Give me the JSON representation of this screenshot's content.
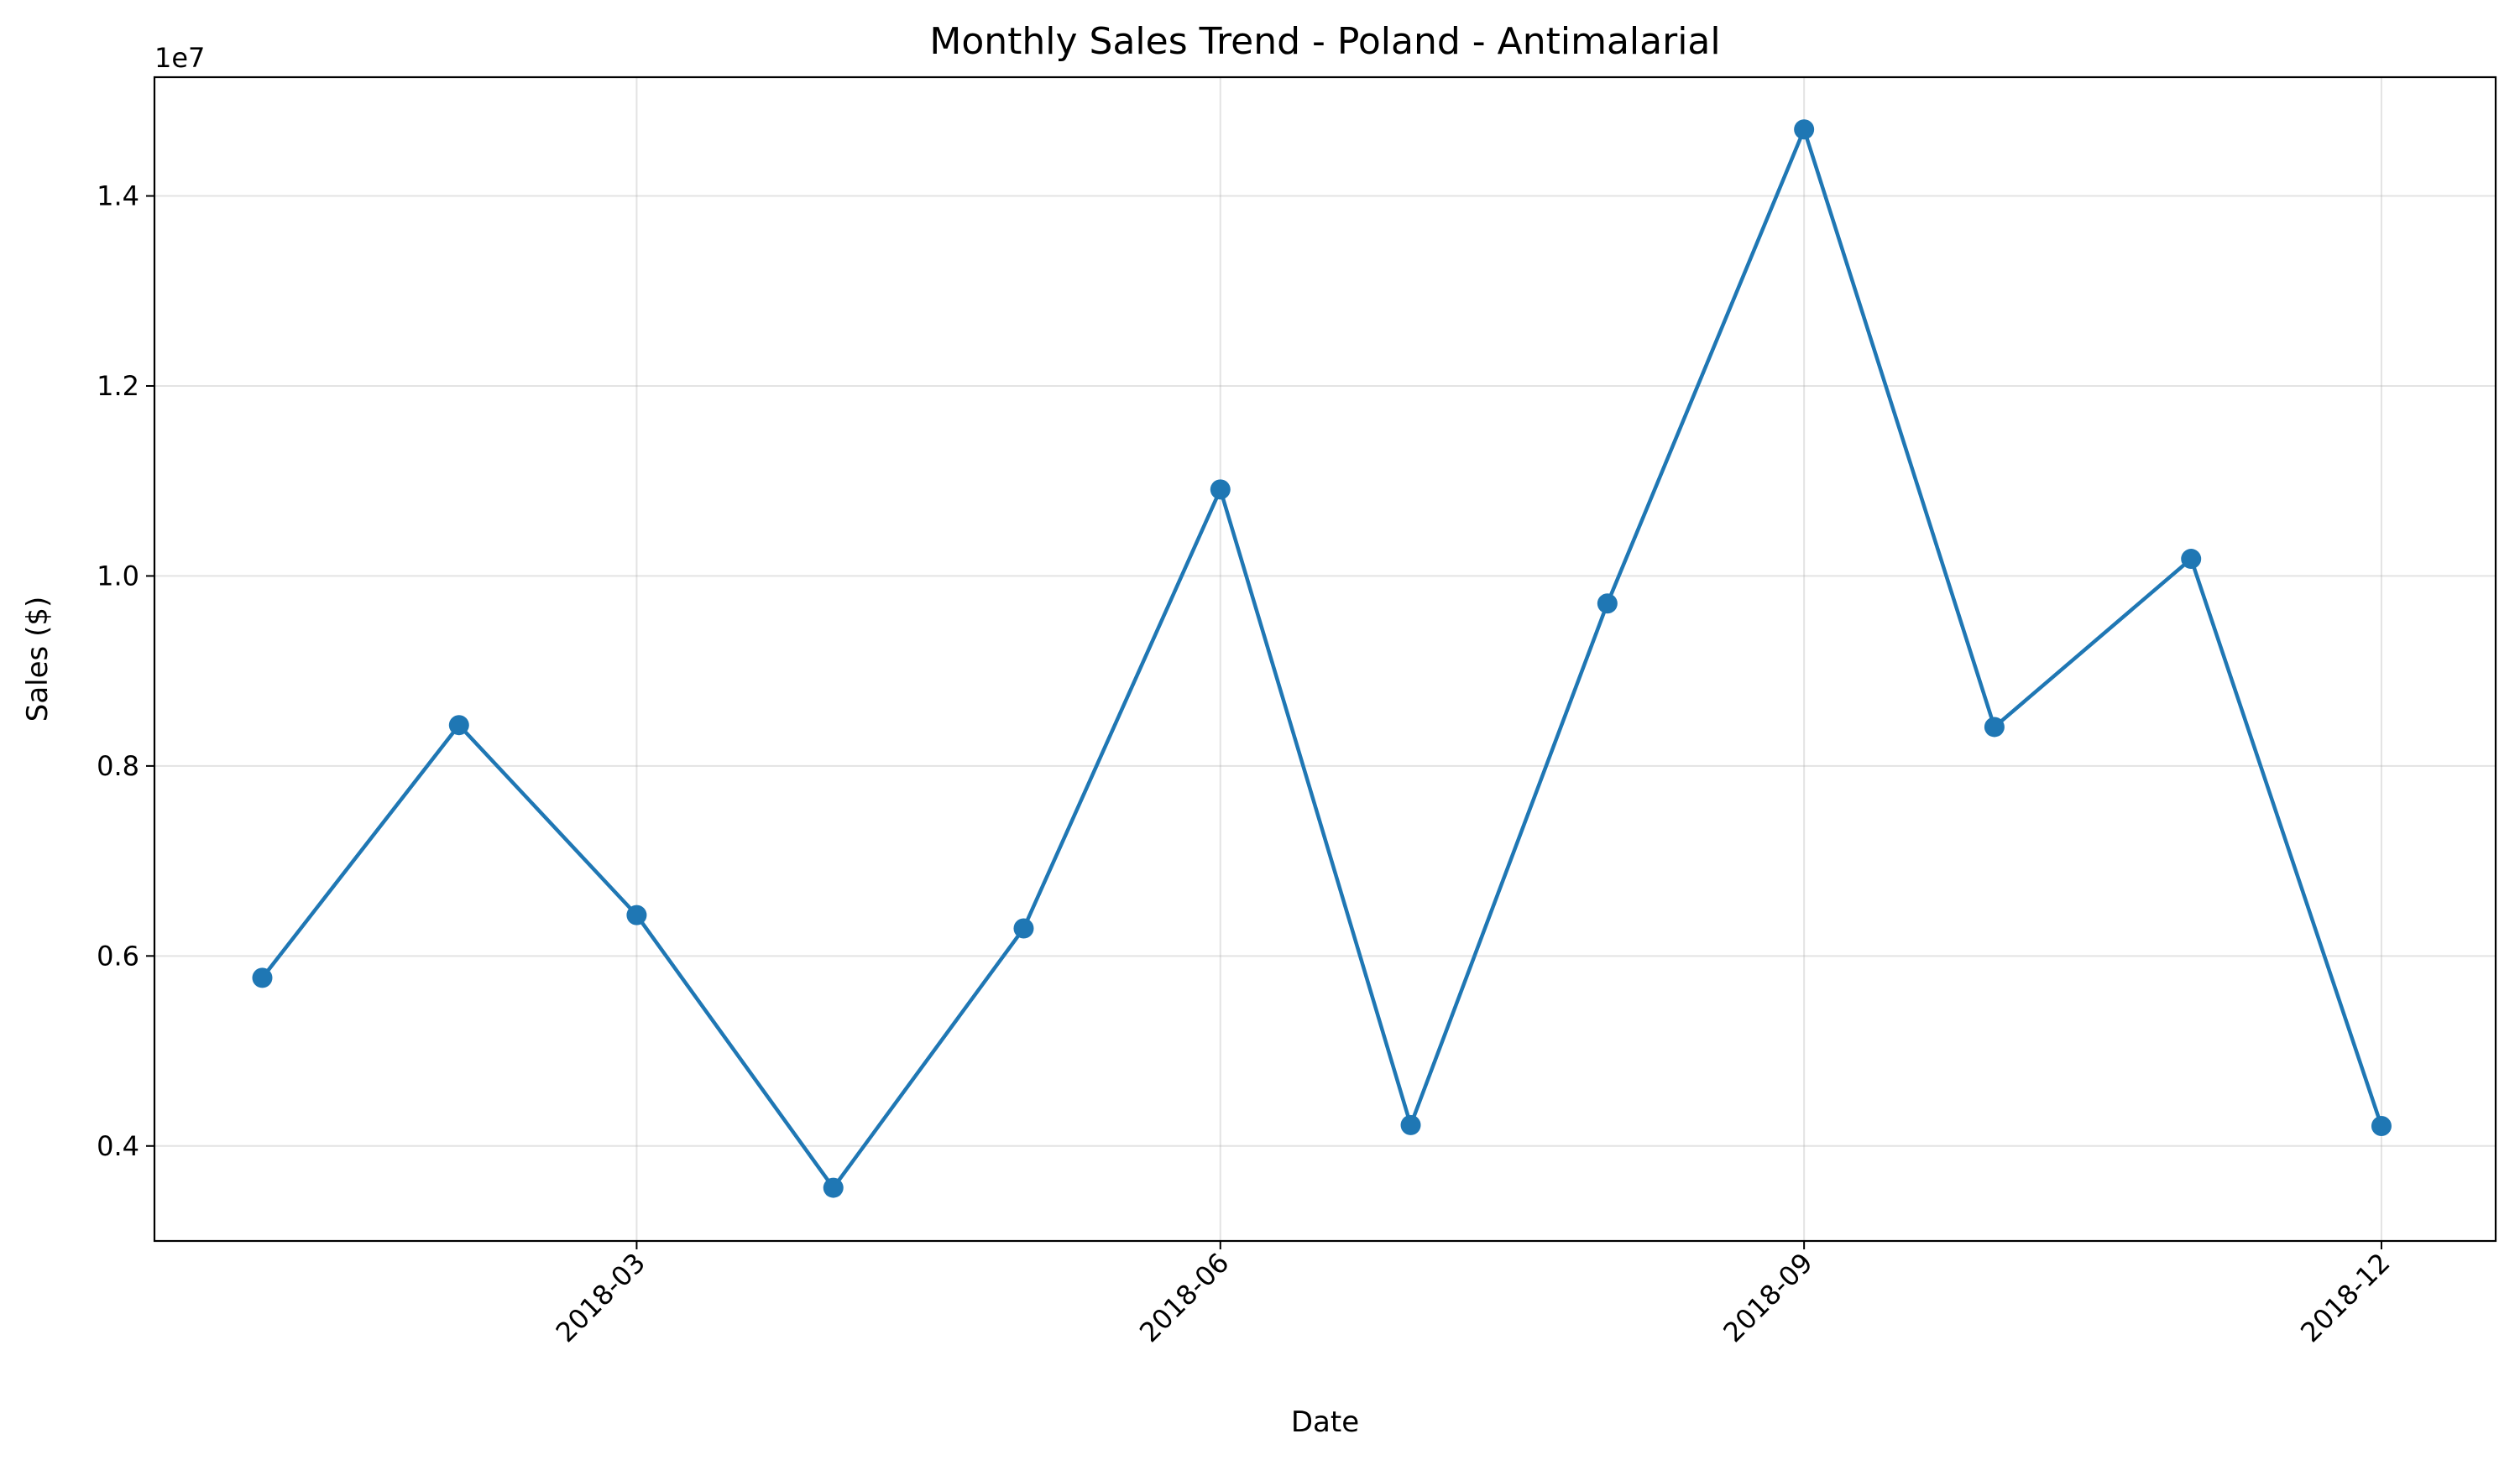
{
  "chart_data": {
    "type": "line",
    "title": "Monthly Sales Trend - Poland - Antimalarial",
    "xlabel": "Date",
    "ylabel": "Sales ($)",
    "y_offset_label": "1e7",
    "x": [
      "2018-01-01",
      "2018-02-01",
      "2018-03-01",
      "2018-04-01",
      "2018-05-01",
      "2018-06-01",
      "2018-07-01",
      "2018-08-01",
      "2018-09-01",
      "2018-10-01",
      "2018-11-01",
      "2018-12-01"
    ],
    "series": [
      {
        "values": [
          5770000,
          8430000,
          6430000,
          3560000,
          6290000,
          10910000,
          4220000,
          9710000,
          14700000,
          8410000,
          10180000,
          4210000
        ]
      }
    ],
    "x_ticks": [
      "2018-03",
      "2018-06",
      "2018-09",
      "2018-12"
    ],
    "x_tick_dates": [
      "2018-03-01",
      "2018-06-01",
      "2018-09-01",
      "2018-12-01"
    ],
    "y_ticks": [
      0.4,
      0.6,
      0.8,
      1.0,
      1.2,
      1.4
    ],
    "y_tick_labels": [
      "0.4",
      "0.6",
      "0.8",
      "1.0",
      "1.2",
      "1.4"
    ],
    "xlim": [
      "2017-12-15",
      "2018-12-19"
    ],
    "ylim": [
      3000000,
      15250000
    ],
    "grid": true,
    "legend": "none",
    "marker": "circle",
    "color": "#1f77b4"
  }
}
